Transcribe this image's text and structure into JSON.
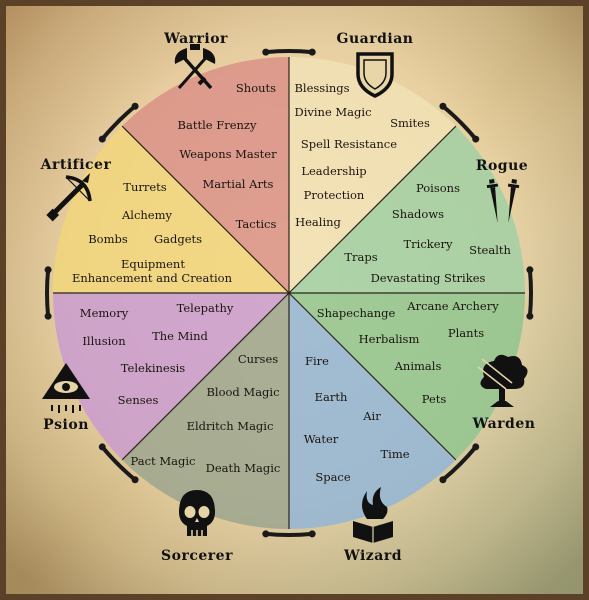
{
  "classes": {
    "warrior": "Warrior",
    "guardian": "Guardian",
    "rogue": "Rogue",
    "warden": "Warden",
    "wizard": "Wizard",
    "sorcerer": "Sorcerer",
    "psion": "Psion",
    "artificer": "Artificer"
  },
  "sectors": {
    "warrior": [
      "Shouts",
      "Battle Frenzy",
      "Weapons Master",
      "Martial Arts",
      "Tactics"
    ],
    "guardian": [
      "Blessings",
      "Divine Magic",
      "Smites",
      "Spell Resistance",
      "Leadership",
      "Protection",
      "Healing"
    ],
    "rogue": [
      "Poisons",
      "Shadows",
      "Trickery",
      "Stealth",
      "Traps",
      "Devastating Strikes"
    ],
    "warden": [
      "Shapechange",
      "Arcane Archery",
      "Plants",
      "Herbalism",
      "Animals",
      "Pets"
    ],
    "wizard": [
      "Fire",
      "Earth",
      "Air",
      "Water",
      "Time",
      "Space"
    ],
    "sorcerer": [
      "Curses",
      "Blood Magic",
      "Eldritch Magic",
      "Pact Magic",
      "Death Magic"
    ],
    "psion": [
      "Memory",
      "Telepathy",
      "The Mind",
      "Illusion",
      "Telekinesis",
      "Senses"
    ],
    "artificer": [
      "Turrets",
      "Alchemy",
      "Bombs",
      "Gadgets",
      "Equipment",
      "Enhancement and Creation"
    ]
  },
  "colors": {
    "warrior": "#d98f86",
    "guardian": "#f2e2b4",
    "rogue": "#9fcfa3",
    "warden": "#8dc48e",
    "wizard": "#90b4d8",
    "sorcerer": "#9aa48e",
    "psion": "#c99ad2",
    "artificer": "#f1d57a",
    "ring": "#1a1a1a",
    "parchment": "#e8d3a6"
  },
  "icons": {
    "warrior": "crossed-axe-sword-icon",
    "guardian": "shield-icon",
    "rogue": "twin-daggers-icon",
    "warden": "tree-arrows-icon",
    "wizard": "flaming-book-icon",
    "sorcerer": "skull-icon",
    "psion": "eye-pyramid-icon",
    "artificer": "crossbow-icon"
  }
}
